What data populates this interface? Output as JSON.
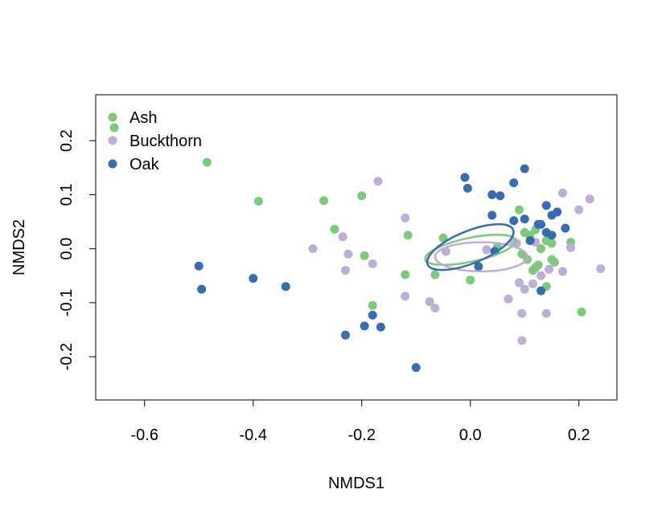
{
  "chart_data": {
    "type": "scatter",
    "title": "",
    "xlabel": "NMDS1",
    "ylabel": "NMDS2",
    "xlim": [
      -0.69,
      0.27
    ],
    "ylim": [
      -0.28,
      0.285
    ],
    "xticks": [
      -0.6,
      -0.4,
      -0.2,
      0.0,
      0.2
    ],
    "xtick_labels": [
      "-0.6",
      "-0.4",
      "-0.2",
      "0.0",
      "0.2"
    ],
    "yticks": [
      -0.2,
      -0.1,
      0.0,
      0.1,
      0.2
    ],
    "ytick_labels": [
      "-0.2",
      "-0.1",
      "0.0",
      "0.1",
      "0.2"
    ],
    "grid": false,
    "legend_position": "top-left",
    "legend_entries": [
      "Ash",
      "Buckthorn",
      "Oak"
    ],
    "series": [
      {
        "name": "Ash",
        "color": "#7fc97f",
        "points": [
          [
            -0.485,
            0.16
          ],
          [
            -0.39,
            0.088
          ],
          [
            -0.27,
            0.089
          ],
          [
            -0.25,
            0.036
          ],
          [
            -0.2,
            0.098
          ],
          [
            -0.195,
            -0.013
          ],
          [
            -0.18,
            -0.105
          ],
          [
            -0.115,
            0.025
          ],
          [
            -0.12,
            -0.048
          ],
          [
            -0.065,
            -0.048
          ],
          [
            -0.05,
            0.02
          ],
          [
            0.0,
            -0.058
          ],
          [
            0.05,
            0.003
          ],
          [
            0.09,
            0.072
          ],
          [
            0.1,
            0.03
          ],
          [
            0.11,
            0.025
          ],
          [
            0.12,
            0.035
          ],
          [
            0.13,
            0.0
          ],
          [
            0.14,
            0.015
          ],
          [
            0.15,
            0.01
          ],
          [
            0.14,
            -0.07
          ],
          [
            0.12,
            -0.035
          ],
          [
            0.105,
            -0.02
          ],
          [
            0.15,
            -0.02
          ],
          [
            0.185,
            0.012
          ],
          [
            0.205,
            -0.117
          ],
          [
            0.115,
            -0.04
          ],
          [
            0.095,
            -0.01
          ],
          [
            0.155,
            -0.025
          ],
          [
            0.125,
            -0.03
          ]
        ],
        "ellipse": {
          "center": [
            0.0,
            -0.002
          ],
          "radii": [
            0.085,
            0.022
          ],
          "angle_deg": -12
        }
      },
      {
        "name": "Buckthorn",
        "color": "#beaed4",
        "points": [
          [
            -0.17,
            0.125
          ],
          [
            -0.12,
            0.057
          ],
          [
            -0.235,
            0.022
          ],
          [
            -0.29,
            0.0
          ],
          [
            -0.225,
            -0.01
          ],
          [
            -0.23,
            -0.04
          ],
          [
            -0.18,
            -0.028
          ],
          [
            -0.12,
            -0.088
          ],
          [
            -0.075,
            -0.098
          ],
          [
            -0.065,
            -0.11
          ],
          [
            -0.045,
            -0.005
          ],
          [
            0.03,
            -0.002
          ],
          [
            0.08,
            0.013
          ],
          [
            0.085,
            0.01
          ],
          [
            0.07,
            -0.093
          ],
          [
            0.09,
            -0.063
          ],
          [
            0.1,
            -0.075
          ],
          [
            0.095,
            -0.12
          ],
          [
            0.095,
            -0.17
          ],
          [
            0.13,
            -0.05
          ],
          [
            0.145,
            -0.038
          ],
          [
            0.14,
            -0.12
          ],
          [
            0.17,
            0.103
          ],
          [
            0.2,
            0.072
          ],
          [
            0.22,
            0.092
          ],
          [
            0.185,
            0.002
          ],
          [
            0.24,
            -0.037
          ],
          [
            0.115,
            -0.065
          ],
          [
            0.12,
            0.012
          ],
          [
            0.17,
            -0.042
          ]
        ],
        "ellipse": {
          "center": [
            0.02,
            -0.015
          ],
          "radii": [
            0.085,
            0.027
          ],
          "angle_deg": 0
        }
      },
      {
        "name": "Oak",
        "color": "#386cb0",
        "points": [
          [
            -0.5,
            -0.032
          ],
          [
            -0.495,
            -0.075
          ],
          [
            -0.4,
            -0.055
          ],
          [
            -0.34,
            -0.07
          ],
          [
            -0.23,
            -0.16
          ],
          [
            -0.195,
            -0.143
          ],
          [
            -0.18,
            -0.123
          ],
          [
            -0.165,
            -0.145
          ],
          [
            -0.1,
            -0.22
          ],
          [
            -0.01,
            0.132
          ],
          [
            -0.005,
            0.112
          ],
          [
            0.04,
            0.1
          ],
          [
            0.055,
            0.098
          ],
          [
            0.04,
            0.062
          ],
          [
            0.08,
            0.122
          ],
          [
            0.1,
            0.148
          ],
          [
            0.08,
            0.052
          ],
          [
            0.1,
            0.055
          ],
          [
            0.125,
            0.045
          ],
          [
            0.14,
            0.08
          ],
          [
            0.15,
            0.062
          ],
          [
            0.16,
            0.068
          ],
          [
            0.14,
            0.03
          ],
          [
            0.15,
            0.025
          ],
          [
            0.13,
            0.045
          ],
          [
            0.175,
            0.038
          ],
          [
            0.11,
            0.015
          ],
          [
            0.015,
            -0.033
          ],
          [
            0.045,
            -0.005
          ],
          [
            0.13,
            -0.078
          ]
        ],
        "ellipse": {
          "center": [
            0.0,
            0.003
          ],
          "radii": [
            0.085,
            0.03
          ],
          "angle_deg": -22
        }
      }
    ]
  }
}
